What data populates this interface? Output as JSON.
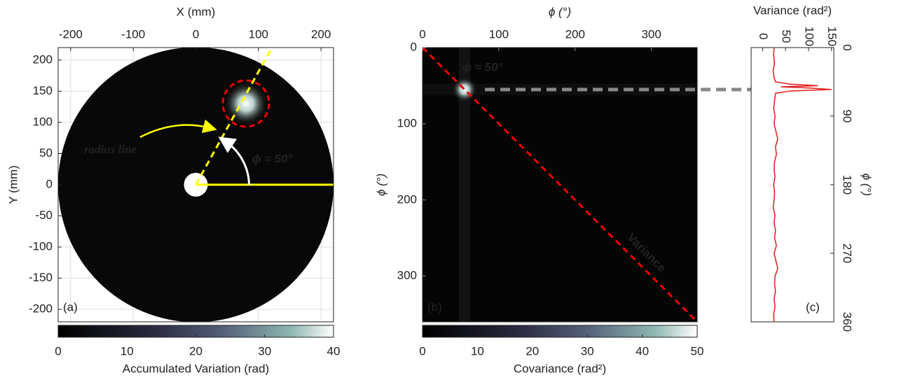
{
  "chart_data": [
    {
      "type": "heatmap",
      "xlabel": "X (mm)",
      "ylabel": "Y (mm)",
      "panel_label": "(a)",
      "xlim": [
        -220,
        220
      ],
      "ylim": [
        -220,
        220
      ],
      "xticks": [
        -200,
        -100,
        0,
        100,
        200
      ],
      "yticks": [
        -200,
        -150,
        -100,
        -50,
        0,
        50,
        100,
        150,
        200
      ],
      "grid": true,
      "annotations": [
        "radius line",
        "ϕ ≈ 50°"
      ],
      "colorbar": {
        "label": "Accumulated Variation (rad)",
        "lim": [
          0,
          40
        ],
        "ticks": [
          0,
          10,
          20,
          30,
          40
        ]
      }
    },
    {
      "type": "heatmap",
      "xlabel": "ϕ (°)",
      "ylabel": "ϕ (°)",
      "panel_label": "(b)",
      "xlim": [
        0,
        360
      ],
      "ylim": [
        0,
        360
      ],
      "xticks": [
        0,
        100,
        200,
        300
      ],
      "yticks": [
        0,
        100,
        200,
        300
      ],
      "annotations": [
        "ϕ ≈ 50°",
        "Variance"
      ],
      "colorbar": {
        "label": "Covariance (rad²)",
        "lim": [
          0,
          50
        ],
        "ticks": [
          0,
          10,
          20,
          30,
          40,
          50
        ]
      }
    },
    {
      "type": "line",
      "xlabel": "ϕ (°)",
      "ylabel": "Variance (rad²)",
      "panel_label": "(c)",
      "color": "#e41a1c",
      "xlim": [
        0,
        360
      ],
      "xticks": [
        0,
        90,
        180,
        270,
        360
      ],
      "ylim": [
        -25,
        155
      ],
      "yticks": [
        0,
        50,
        100,
        150
      ],
      "x": [
        0,
        10,
        20,
        30,
        40,
        45,
        48,
        50,
        51.5,
        53,
        55,
        57,
        60,
        70,
        80,
        90,
        100,
        110,
        120,
        130,
        140,
        150,
        160,
        170,
        180,
        190,
        200,
        210,
        220,
        230,
        240,
        250,
        260,
        270,
        280,
        290,
        300,
        310,
        320,
        330,
        340,
        350,
        360
      ],
      "values": [
        25,
        24,
        26,
        23,
        25,
        28,
        60,
        120,
        40,
        100,
        150,
        60,
        28,
        26,
        24,
        27,
        25,
        29,
        33,
        28,
        30,
        26,
        25,
        27,
        24,
        26,
        25,
        23,
        27,
        25,
        28,
        26,
        30,
        25,
        29,
        33,
        27,
        26,
        28,
        25,
        27,
        24,
        25
      ]
    }
  ]
}
